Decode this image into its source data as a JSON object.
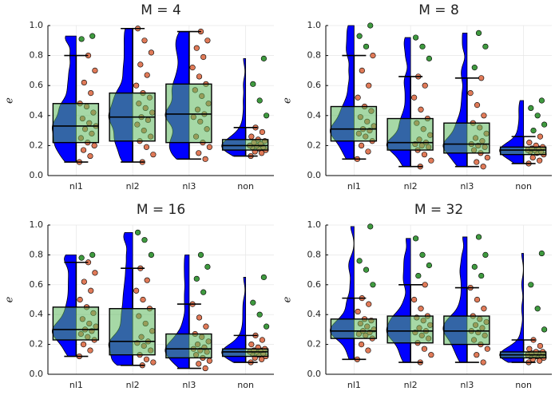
{
  "chart_data": [
    {
      "type": "box",
      "title": "M = 4",
      "ylabel": "e",
      "categories": [
        "nl1",
        "nl2",
        "nl3",
        "non"
      ],
      "ylim": [
        0,
        1
      ],
      "yticks": [
        {
          "value": 0,
          "label": "0.0"
        },
        0.2,
        0.4,
        0.6,
        0.8,
        {
          "value": 1,
          "label": "1.0"
        }
      ],
      "grid": true,
      "violin_color": "#0000ff",
      "box_color": "#5cb85c",
      "point_color": "#e07a58",
      "outlier_color": "#3f9a3f",
      "boxes": [
        {
          "low": 0.09,
          "q1": 0.22,
          "median": 0.33,
          "q3": 0.48,
          "high": 0.8
        },
        {
          "low": 0.09,
          "q1": 0.23,
          "median": 0.39,
          "q3": 0.55,
          "high": 0.98
        },
        {
          "low": 0.11,
          "q1": 0.22,
          "median": 0.41,
          "q3": 0.61,
          "high": 0.96
        },
        {
          "low": 0.13,
          "q1": 0.17,
          "median": 0.2,
          "q3": 0.24,
          "high": 0.32
        }
      ],
      "points": [
        [
          0.09,
          0.13,
          0.17,
          0.2,
          0.22,
          0.25,
          0.28,
          0.31,
          0.33,
          0.35,
          0.38,
          0.42,
          0.46,
          0.48,
          0.55,
          0.62,
          0.7,
          0.8,
          0.91,
          0.93
        ],
        [
          0.09,
          0.14,
          0.19,
          0.23,
          0.26,
          0.3,
          0.34,
          0.37,
          0.39,
          0.42,
          0.45,
          0.48,
          0.52,
          0.55,
          0.6,
          0.67,
          0.74,
          0.82,
          0.9,
          0.98
        ],
        [
          0.11,
          0.15,
          0.19,
          0.22,
          0.26,
          0.31,
          0.36,
          0.39,
          0.41,
          0.44,
          0.48,
          0.53,
          0.57,
          0.61,
          0.66,
          0.72,
          0.79,
          0.85,
          0.9,
          0.96
        ],
        [
          0.13,
          0.15,
          0.16,
          0.17,
          0.18,
          0.19,
          0.19,
          0.2,
          0.2,
          0.21,
          0.22,
          0.23,
          0.24,
          0.26,
          0.29,
          0.32,
          0.4,
          0.5,
          0.61,
          0.78
        ]
      ]
    },
    {
      "type": "box",
      "title": "M = 8",
      "ylabel": "e",
      "categories": [
        "nl1",
        "nl2",
        "nl3",
        "non"
      ],
      "ylim": [
        0,
        1
      ],
      "yticks": [
        {
          "value": 0,
          "label": "0.0"
        },
        0.2,
        0.4,
        0.6,
        0.8,
        {
          "value": 1,
          "label": "1.0"
        }
      ],
      "grid": true,
      "violin_color": "#0000ff",
      "box_color": "#5cb85c",
      "point_color": "#e07a58",
      "outlier_color": "#3f9a3f",
      "boxes": [
        {
          "low": 0.11,
          "q1": 0.23,
          "median": 0.31,
          "q3": 0.46,
          "high": 0.8
        },
        {
          "low": 0.06,
          "q1": 0.17,
          "median": 0.22,
          "q3": 0.38,
          "high": 0.66
        },
        {
          "low": 0.06,
          "q1": 0.15,
          "median": 0.21,
          "q3": 0.35,
          "high": 0.65
        },
        {
          "low": 0.08,
          "q1": 0.14,
          "median": 0.17,
          "q3": 0.19,
          "high": 0.26
        }
      ],
      "points": [
        [
          0.11,
          0.16,
          0.2,
          0.23,
          0.26,
          0.28,
          0.3,
          0.31,
          0.33,
          0.36,
          0.39,
          0.43,
          0.46,
          0.52,
          0.6,
          0.7,
          0.8,
          0.86,
          0.93,
          1.0
        ],
        [
          0.06,
          0.1,
          0.14,
          0.17,
          0.19,
          0.2,
          0.21,
          0.22,
          0.24,
          0.27,
          0.31,
          0.35,
          0.38,
          0.44,
          0.52,
          0.6,
          0.66,
          0.78,
          0.86,
          0.92
        ],
        [
          0.06,
          0.09,
          0.12,
          0.15,
          0.17,
          0.19,
          0.2,
          0.21,
          0.23,
          0.25,
          0.28,
          0.32,
          0.35,
          0.4,
          0.47,
          0.55,
          0.65,
          0.72,
          0.86,
          0.95
        ],
        [
          0.08,
          0.1,
          0.12,
          0.14,
          0.15,
          0.16,
          0.16,
          0.17,
          0.17,
          0.18,
          0.18,
          0.19,
          0.2,
          0.22,
          0.26,
          0.3,
          0.34,
          0.4,
          0.45,
          0.5
        ]
      ]
    },
    {
      "type": "box",
      "title": "M = 16",
      "ylabel": "e",
      "categories": [
        "nl1",
        "nl2",
        "nl3",
        "non"
      ],
      "ylim": [
        0,
        1
      ],
      "yticks": [
        {
          "value": 0,
          "label": "0.0"
        },
        0.2,
        0.4,
        0.6,
        0.8,
        {
          "value": 1,
          "label": "1.0"
        }
      ],
      "grid": true,
      "violin_color": "#0000ff",
      "box_color": "#5cb85c",
      "point_color": "#e07a58",
      "outlier_color": "#3f9a3f",
      "boxes": [
        {
          "low": 0.12,
          "q1": 0.23,
          "median": 0.3,
          "q3": 0.45,
          "high": 0.75
        },
        {
          "low": 0.06,
          "q1": 0.13,
          "median": 0.22,
          "q3": 0.44,
          "high": 0.71
        },
        {
          "low": 0.04,
          "q1": 0.11,
          "median": 0.17,
          "q3": 0.27,
          "high": 0.47
        },
        {
          "low": 0.08,
          "q1": 0.12,
          "median": 0.15,
          "q3": 0.17,
          "high": 0.26
        }
      ],
      "points": [
        [
          0.12,
          0.16,
          0.2,
          0.23,
          0.25,
          0.27,
          0.29,
          0.3,
          0.32,
          0.34,
          0.37,
          0.41,
          0.45,
          0.5,
          0.56,
          0.62,
          0.68,
          0.75,
          0.78,
          0.8
        ],
        [
          0.06,
          0.08,
          0.1,
          0.13,
          0.16,
          0.19,
          0.21,
          0.22,
          0.25,
          0.29,
          0.34,
          0.39,
          0.44,
          0.5,
          0.56,
          0.63,
          0.71,
          0.8,
          0.9,
          0.95
        ],
        [
          0.04,
          0.07,
          0.09,
          0.11,
          0.13,
          0.15,
          0.16,
          0.17,
          0.18,
          0.2,
          0.22,
          0.25,
          0.27,
          0.32,
          0.38,
          0.47,
          0.55,
          0.64,
          0.72,
          0.8
        ],
        [
          0.08,
          0.1,
          0.11,
          0.12,
          0.13,
          0.14,
          0.14,
          0.15,
          0.15,
          0.16,
          0.16,
          0.17,
          0.18,
          0.2,
          0.23,
          0.26,
          0.32,
          0.4,
          0.48,
          0.65
        ]
      ]
    },
    {
      "type": "box",
      "title": "M = 32",
      "ylabel": "e",
      "categories": [
        "nl1",
        "nl2",
        "nl3",
        "non"
      ],
      "ylim": [
        0,
        1
      ],
      "yticks": [
        {
          "value": 0,
          "label": "0.0"
        },
        0.2,
        0.4,
        0.6,
        0.8,
        {
          "value": 1,
          "label": "1.0"
        }
      ],
      "grid": true,
      "violin_color": "#0000ff",
      "box_color": "#5cb85c",
      "point_color": "#e07a58",
      "outlier_color": "#3f9a3f",
      "boxes": [
        {
          "low": 0.1,
          "q1": 0.24,
          "median": 0.29,
          "q3": 0.37,
          "high": 0.51
        },
        {
          "low": 0.08,
          "q1": 0.21,
          "median": 0.29,
          "q3": 0.39,
          "high": 0.6
        },
        {
          "low": 0.08,
          "q1": 0.2,
          "median": 0.29,
          "q3": 0.39,
          "high": 0.58
        },
        {
          "low": 0.08,
          "q1": 0.11,
          "median": 0.13,
          "q3": 0.15,
          "high": 0.23
        }
      ],
      "points": [
        [
          0.1,
          0.16,
          0.2,
          0.24,
          0.26,
          0.27,
          0.28,
          0.29,
          0.3,
          0.32,
          0.34,
          0.36,
          0.37,
          0.42,
          0.47,
          0.51,
          0.6,
          0.7,
          0.76,
          0.99
        ],
        [
          0.08,
          0.13,
          0.17,
          0.21,
          0.24,
          0.26,
          0.28,
          0.29,
          0.31,
          0.33,
          0.36,
          0.38,
          0.39,
          0.44,
          0.5,
          0.6,
          0.66,
          0.73,
          0.8,
          0.91
        ],
        [
          0.08,
          0.13,
          0.17,
          0.2,
          0.23,
          0.26,
          0.28,
          0.29,
          0.31,
          0.33,
          0.35,
          0.37,
          0.39,
          0.44,
          0.5,
          0.58,
          0.66,
          0.72,
          0.8,
          0.92
        ],
        [
          0.08,
          0.09,
          0.1,
          0.11,
          0.12,
          0.12,
          0.13,
          0.13,
          0.13,
          0.14,
          0.14,
          0.15,
          0.15,
          0.17,
          0.19,
          0.23,
          0.3,
          0.44,
          0.6,
          0.81
        ]
      ]
    }
  ]
}
